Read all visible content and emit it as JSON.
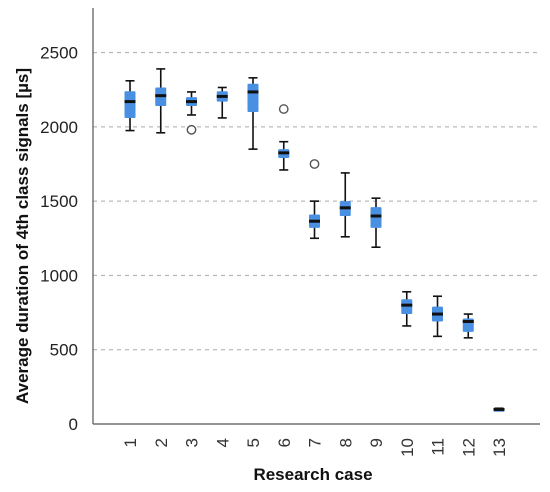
{
  "chart_data": {
    "type": "box",
    "xlabel": "Research case",
    "ylabel": "Average duration of 4th class signals [µs]",
    "ylim": [
      0,
      2800
    ],
    "yticks": [
      0,
      500,
      1000,
      1500,
      2000,
      2500
    ],
    "grid": "horizontal dashed",
    "categories": [
      "1",
      "2",
      "3",
      "4",
      "5",
      "6",
      "7",
      "8",
      "9",
      "10",
      "11",
      "12",
      "13"
    ],
    "box_color": "#4a90e2",
    "median_color": "#111111",
    "boxes": [
      {
        "case": "1",
        "min": 1975,
        "q1": 2060,
        "median": 2170,
        "q3": 2240,
        "max": 2310,
        "outliers": []
      },
      {
        "case": "2",
        "min": 1960,
        "q1": 2140,
        "median": 2210,
        "q3": 2265,
        "max": 2390,
        "outliers": []
      },
      {
        "case": "3",
        "min": 2080,
        "q1": 2140,
        "median": 2170,
        "q3": 2200,
        "max": 2235,
        "outliers": [
          1980
        ]
      },
      {
        "case": "4",
        "min": 2060,
        "q1": 2170,
        "median": 2205,
        "q3": 2240,
        "max": 2265,
        "outliers": []
      },
      {
        "case": "5",
        "min": 1850,
        "q1": 2100,
        "median": 2235,
        "q3": 2290,
        "max": 2330,
        "outliers": []
      },
      {
        "case": "6",
        "min": 1710,
        "q1": 1790,
        "median": 1825,
        "q3": 1850,
        "max": 1900,
        "outliers": [
          2120
        ]
      },
      {
        "case": "7",
        "min": 1250,
        "q1": 1320,
        "median": 1365,
        "q3": 1410,
        "max": 1500,
        "outliers": [
          1750
        ]
      },
      {
        "case": "8",
        "min": 1260,
        "q1": 1400,
        "median": 1455,
        "q3": 1500,
        "max": 1690,
        "outliers": []
      },
      {
        "case": "9",
        "min": 1190,
        "q1": 1320,
        "median": 1400,
        "q3": 1460,
        "max": 1520,
        "outliers": []
      },
      {
        "case": "10",
        "min": 660,
        "q1": 740,
        "median": 800,
        "q3": 840,
        "max": 890,
        "outliers": []
      },
      {
        "case": "11",
        "min": 590,
        "q1": 690,
        "median": 740,
        "q3": 790,
        "max": 860,
        "outliers": []
      },
      {
        "case": "12",
        "min": 580,
        "q1": 620,
        "median": 690,
        "q3": 710,
        "max": 740,
        "outliers": []
      },
      {
        "case": "13",
        "min": 90,
        "q1": 93,
        "median": 98,
        "q3": 103,
        "max": 106,
        "outliers": []
      }
    ]
  }
}
